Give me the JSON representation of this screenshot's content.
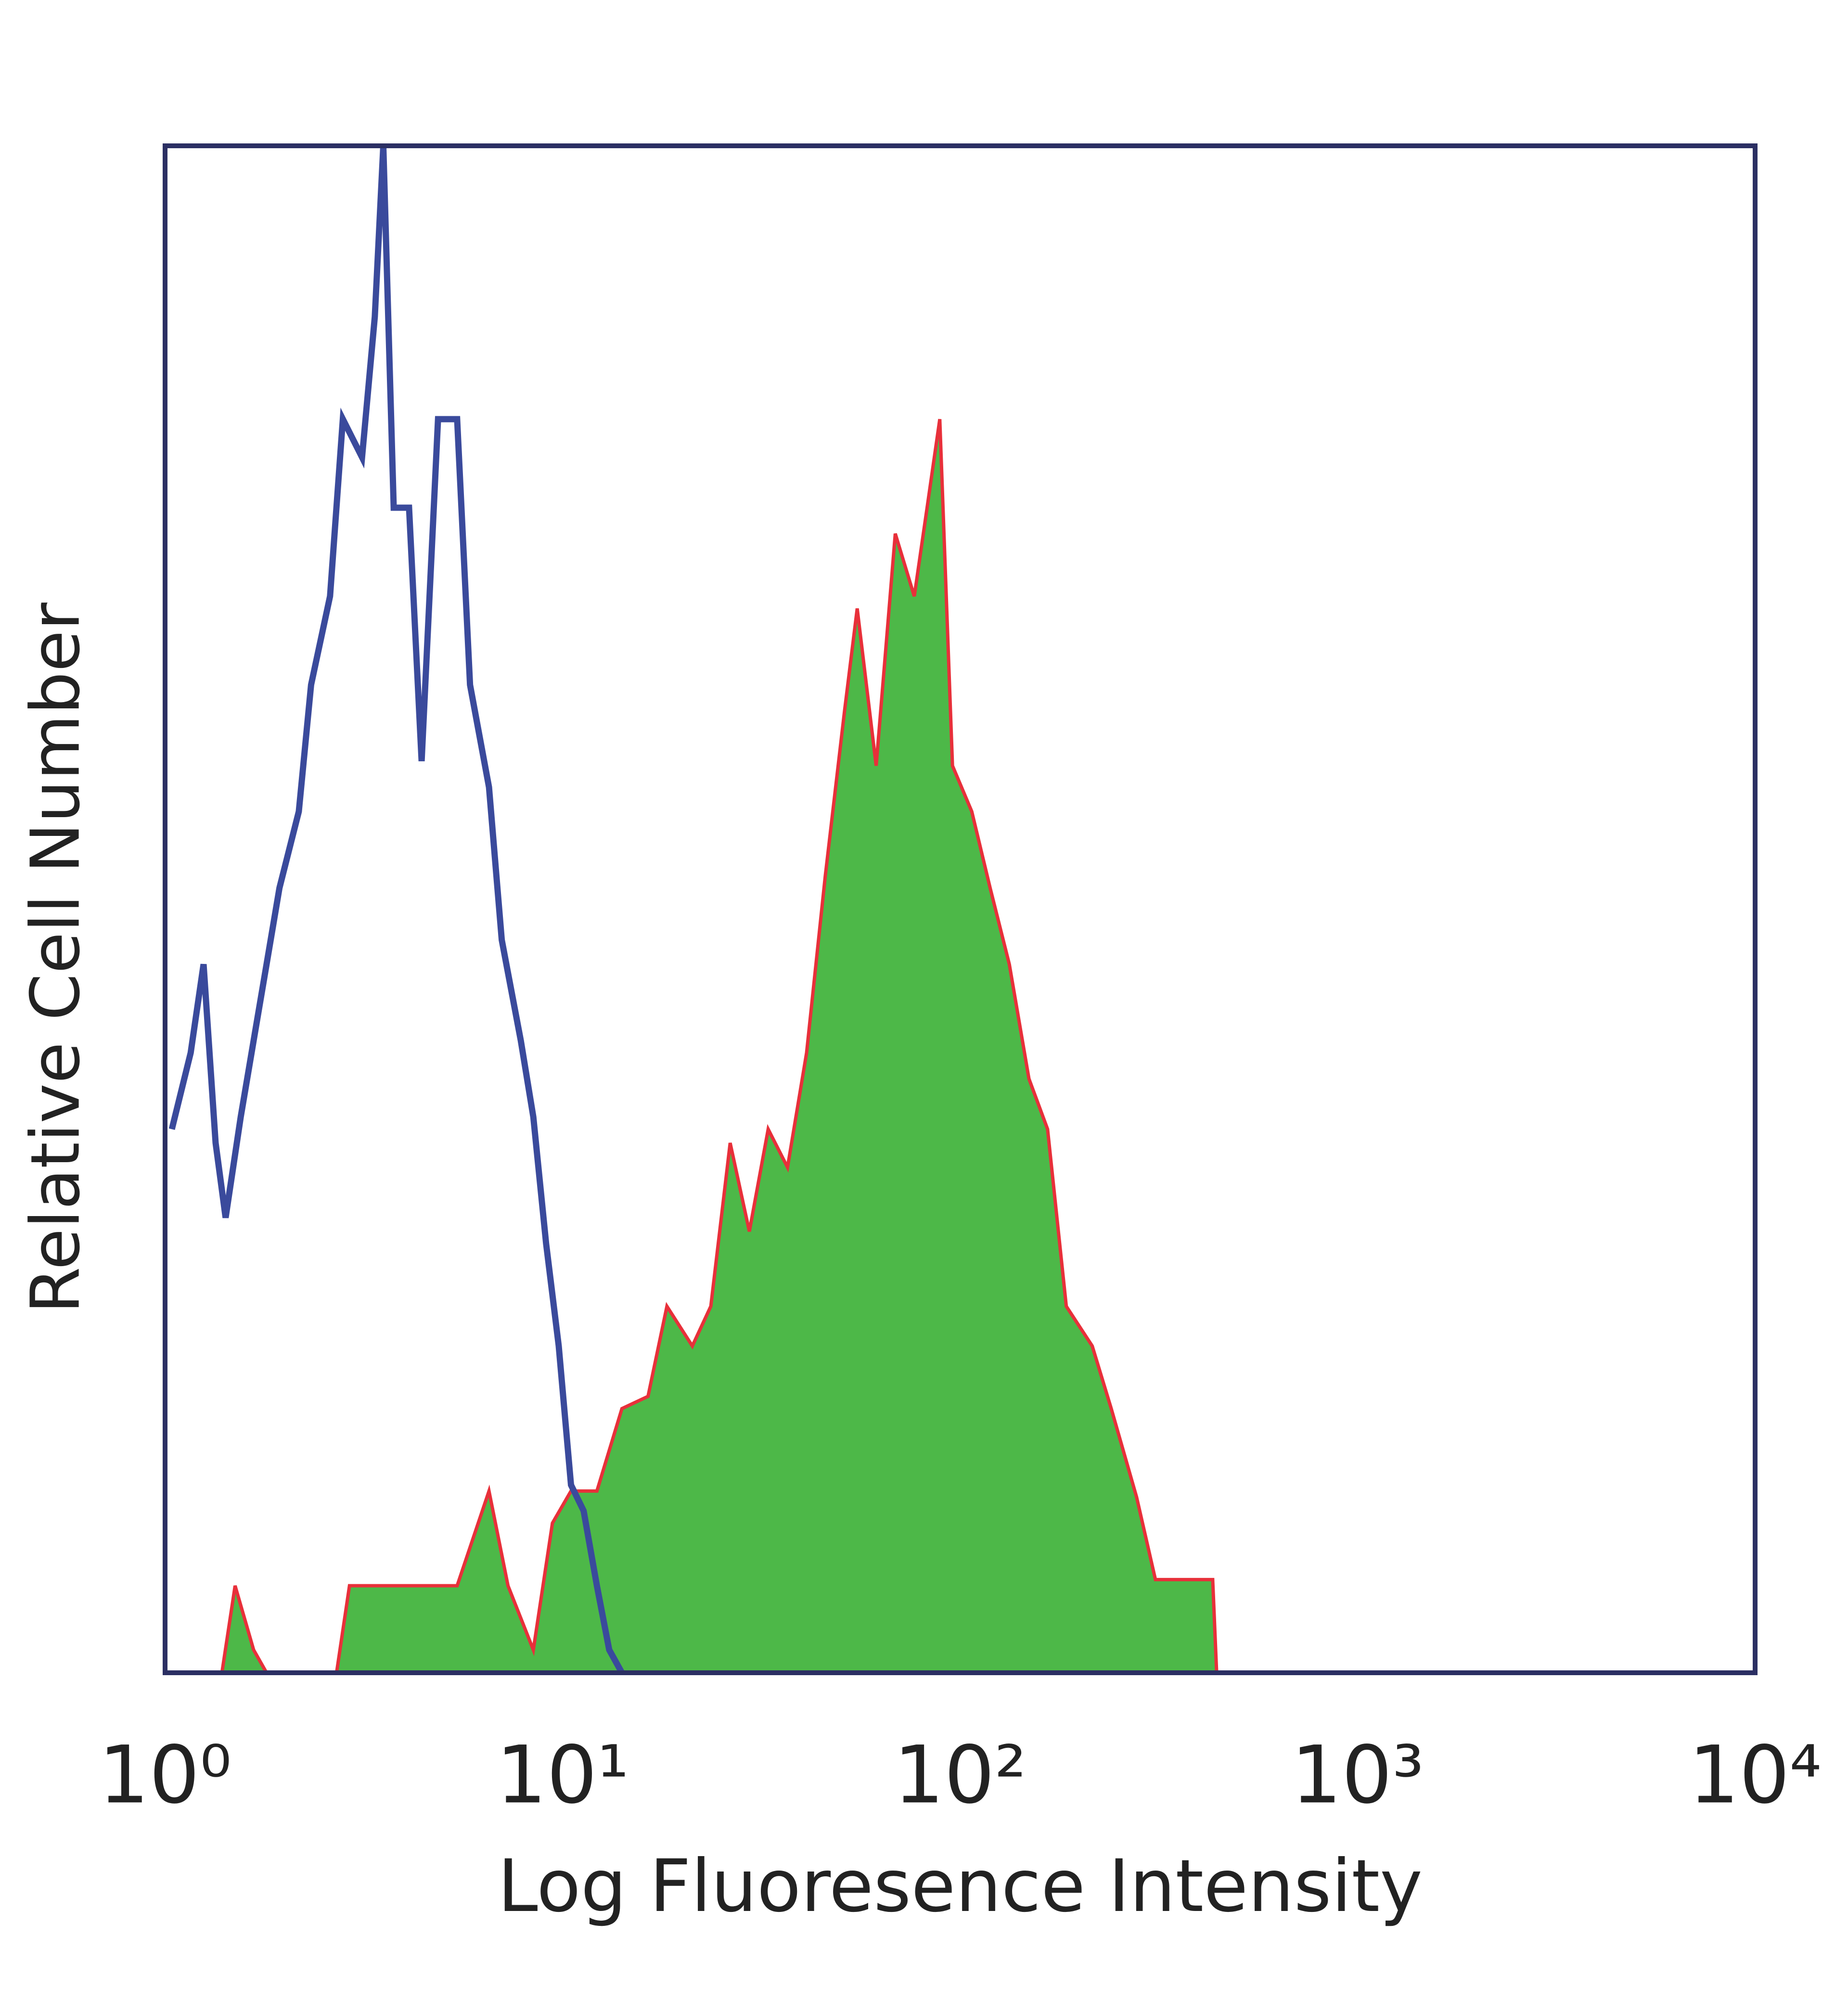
{
  "chart_data": {
    "type": "histogram-overlay",
    "xlabel": "Log Fluoresence Intensity",
    "ylabel": "Relative Cell Number",
    "log_x": true,
    "xlim": [
      1,
      10000
    ],
    "xticks": [
      {
        "value": 1,
        "label": "10⁰"
      },
      {
        "value": 10,
        "label": "10¹"
      },
      {
        "value": 100,
        "label": "10²"
      },
      {
        "value": 1000,
        "label": "10³"
      },
      {
        "value": 10000,
        "label": "10⁴"
      }
    ],
    "ylim": [
      0,
      100
    ],
    "frame_color": "#2b2f63",
    "series": [
      {
        "color": "#3a4a9c",
        "filled": false,
        "x": [
          1.04,
          1.16,
          1.25,
          1.34,
          1.42,
          1.55,
          1.67,
          1.8,
          1.94,
          2.17,
          2.33,
          2.6,
          2.8,
          3.13,
          3.37,
          3.54,
          3.76,
          4.11,
          4.42,
          4.86,
          5.43,
          5.85,
          6.53,
          7.03,
          7.85,
          8.44,
          9.09,
          9.78,
          10.5,
          11.3,
          12.2,
          13.1,
          14.1
        ],
        "values": [
          35.6,
          40.6,
          46.4,
          34.7,
          29.8,
          36.4,
          41.4,
          46.4,
          51.4,
          56.4,
          64.7,
          70.5,
          82.1,
          79.6,
          88.8,
          100,
          76.3,
          76.3,
          59.7,
          82.1,
          82.1,
          64.7,
          58.0,
          48.0,
          41.4,
          36.4,
          28.1,
          21.4,
          12.3,
          10.6,
          5.7,
          1.5,
          0
        ]
      },
      {
        "color": "#4db848",
        "edge_color": "#e8303a",
        "filled": true,
        "x": [
          1.0,
          1.39,
          1.5,
          1.67,
          1.8,
          2.7,
          2.91,
          3.49,
          4.36,
          5.43,
          6.53,
          7.29,
          8.44,
          9.43,
          10.5,
          12.2,
          14.1,
          16.4,
          18.3,
          21.2,
          23.6,
          26.4,
          29.5,
          32.9,
          36.8,
          41.1,
          45.8,
          51.2,
          55.1,
          61.5,
          68.7,
          76.7,
          82.6,
          88.9,
          95.7,
          107,
          119,
          133,
          149,
          166,
          185,
          215,
          240,
          278,
          310,
          432,
          442
        ],
        "values": [
          0,
          0,
          5.7,
          1.5,
          0,
          0,
          5.7,
          5.7,
          5.7,
          5.7,
          11.9,
          5.7,
          1.5,
          9.8,
          11.9,
          11.9,
          17.3,
          18.1,
          24.0,
          21.4,
          24.0,
          34.7,
          28.9,
          35.6,
          33.1,
          40.6,
          52.2,
          63.0,
          69.7,
          59.4,
          74.6,
          70.5,
          76.3,
          82.1,
          59.4,
          56.4,
          51.4,
          46.4,
          38.9,
          35.6,
          24.0,
          21.4,
          17.3,
          11.5,
          6.1,
          6.1,
          0
        ]
      }
    ]
  }
}
